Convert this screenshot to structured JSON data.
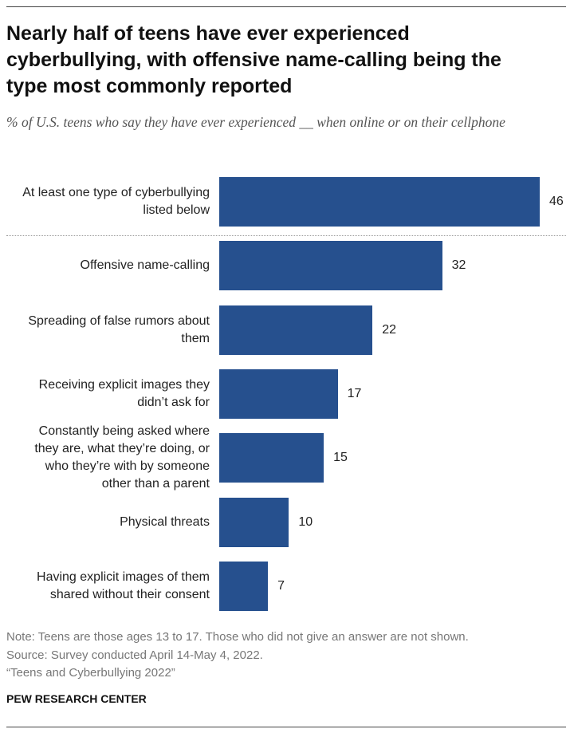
{
  "chart_data": {
    "type": "bar",
    "orientation": "horizontal",
    "title": "Nearly half of teens have ever experienced cyberbullying, with offensive name-calling being the type most commonly reported",
    "subtitle": "% of U.S. teens who say they have ever experienced __ when online or on their cellphone",
    "categories": [
      "At least one type of cyberbullying listed below",
      "Offensive name-calling",
      "Spreading of false rumors about them",
      "Receiving explicit images they didn’t ask for",
      "Constantly being asked where they are, what they’re doing, or who they’re with by someone other than a parent",
      "Physical threats",
      "Having explicit images of them shared without their consent"
    ],
    "values": [
      46,
      32,
      22,
      17,
      15,
      10,
      7
    ],
    "color": "#26508e",
    "notes": [
      "Note: Teens are those ages 13 to 17. Those who did not give an answer are not shown.",
      "Source: Survey conducted April 14-May 4, 2022.",
      "“Teens and Cyberbullying 2022”"
    ],
    "source": "PEW RESEARCH CENTER"
  }
}
